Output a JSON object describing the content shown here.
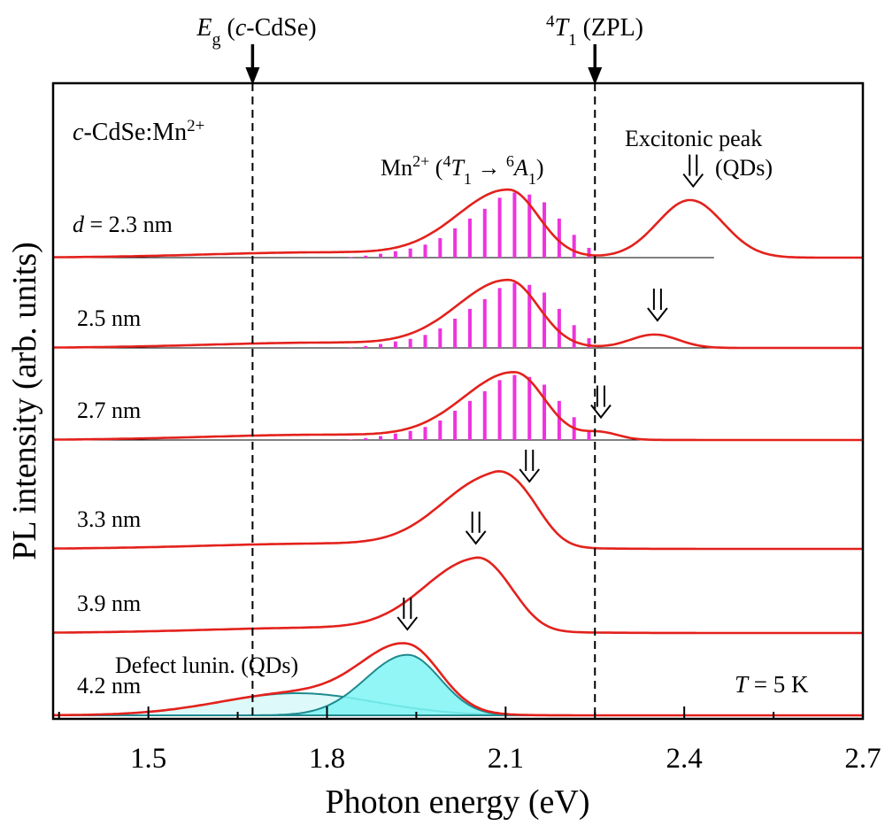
{
  "chart_data": {
    "type": "line",
    "xlabel": "Photon energy (eV)",
    "ylabel": "PL intensity (arb. units)",
    "xlim": [
      1.34,
      2.7
    ],
    "x_ticks": [
      "1.5",
      "1.8",
      "2.1",
      "2.4",
      "2.7"
    ],
    "x_tick_values": [
      1.5,
      1.8,
      2.1,
      2.4,
      2.7
    ],
    "x_minor_tick_values": [
      1.35,
      1.65,
      1.95,
      2.25,
      2.55
    ],
    "material": "c-CdSe:Mn²⁺",
    "temperature_label": "T = 5 K",
    "reference_lines": [
      {
        "x": 1.675,
        "label": "Eg (c-CdSe)"
      },
      {
        "x": 2.25,
        "label": "⁴T₁ (ZPL)"
      }
    ],
    "annotations": {
      "mn_transition": "Mn²⁺ (⁴T₁ → ⁶A₁)",
      "excitonic_peak": "Excitonic peak",
      "excitonic_peak_2": "(QDs)",
      "defect": "Defect lunin. (QDs)"
    },
    "series": [
      {
        "name": "d = 2.3 nm",
        "mn_peak": 2.105,
        "mn_height": 75,
        "exc_peak": 2.41,
        "exc_height": 65,
        "exc_width": 0.055,
        "exciton_marker": 2.415,
        "sticks": true
      },
      {
        "name": "2.5 nm",
        "mn_peak": 2.105,
        "mn_height": 75,
        "exc_peak": 2.35,
        "exc_height": 15,
        "exc_width": 0.04,
        "exciton_marker": 2.355,
        "sticks": true
      },
      {
        "name": "2.7 nm",
        "mn_peak": 2.115,
        "mn_height": 75,
        "exc_peak": 2.26,
        "exc_height": 8,
        "exc_width": 0.03,
        "exciton_marker": 2.26,
        "sticks": true
      },
      {
        "name": "3.3 nm",
        "mn_peak": 2.08,
        "mn_height": 80,
        "exc_peak": 2.14,
        "exc_height": 20,
        "exc_width": 0.035,
        "exciton_marker": 2.14,
        "sticks": false
      },
      {
        "name": "3.9 nm",
        "mn_peak": 2.05,
        "mn_height": 80,
        "exc_peak": 2.11,
        "exc_height": 10,
        "exc_width": 0.035,
        "exciton_marker": 2.05,
        "sticks": false
      },
      {
        "name": "4.2 nm",
        "main_peak": 1.935,
        "main_height": 72,
        "defect_peak": 1.75,
        "defect_height": 25,
        "exciton_marker": 1.935,
        "sticks": false
      }
    ],
    "mn_sticks": {
      "x": [
        1.84,
        1.865,
        1.89,
        1.915,
        1.94,
        1.965,
        1.99,
        2.015,
        2.04,
        2.065,
        2.09,
        2.115,
        2.14,
        2.165,
        2.19,
        2.215,
        2.24
      ],
      "rel_height": [
        0.01,
        0.03,
        0.06,
        0.1,
        0.14,
        0.2,
        0.3,
        0.45,
        0.6,
        0.75,
        0.92,
        1.0,
        0.97,
        0.85,
        0.6,
        0.35,
        0.15
      ]
    },
    "colors": {
      "curve": "#e3211c",
      "stick": "#ee33dd",
      "component_line": "#1f8a8f",
      "component_fill": "#7ff5f5",
      "component_fill_light": "#d7f8f8",
      "frame": "#000000"
    }
  }
}
